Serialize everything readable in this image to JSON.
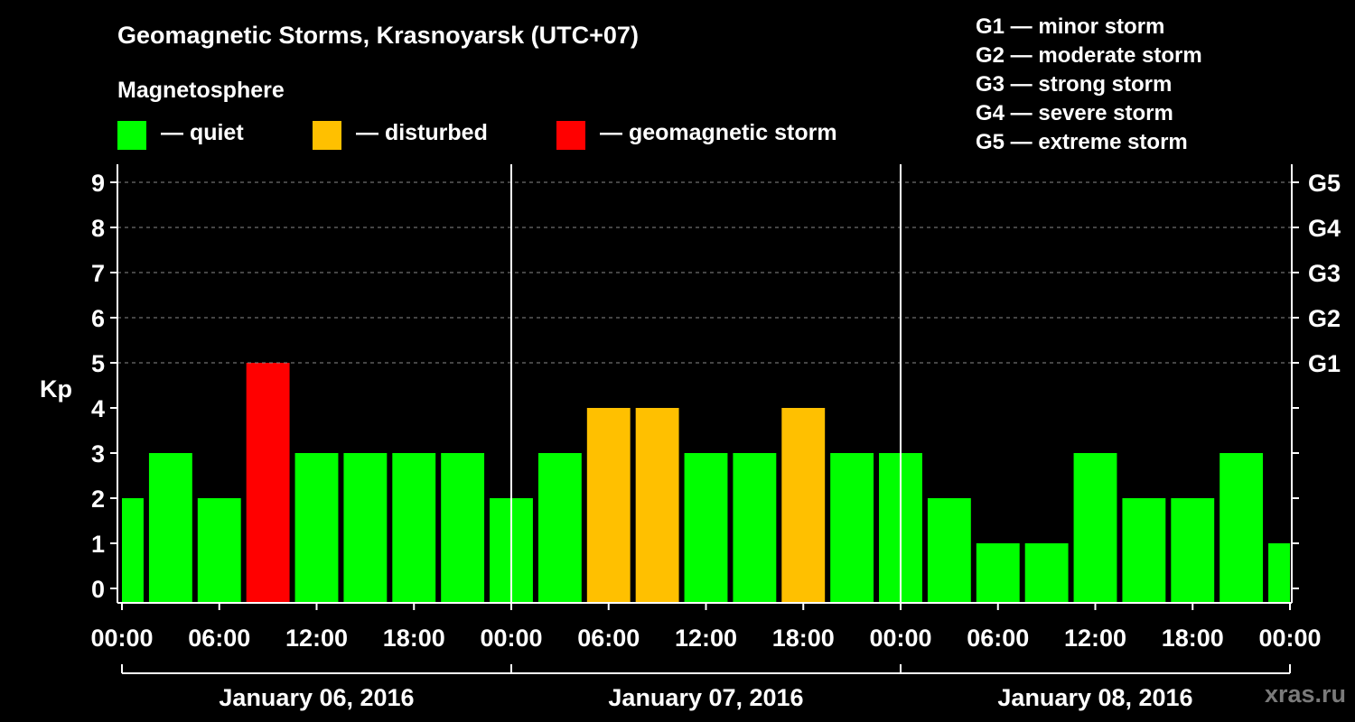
{
  "title": "Geomagnetic Storms, Krasnoyarsk (UTC+07)",
  "magnetosphere_label": "Magnetosphere",
  "legend": {
    "quiet": {
      "label": "— quiet",
      "color": "#00ff00"
    },
    "disturbed": {
      "label": "— disturbed",
      "color": "#ffc000"
    },
    "storm": {
      "label": "— geomagnetic storm",
      "color": "#ff0000"
    }
  },
  "storm_scale": [
    "G1 — minor storm",
    "G2 — moderate storm",
    "G3 — strong storm",
    "G4 — severe storm",
    "G5 — extreme storm"
  ],
  "watermark": "xras.ru",
  "chart_data": {
    "type": "bar",
    "ylabel": "Kp",
    "ylim": [
      0,
      9
    ],
    "yticks": [
      "0",
      "1",
      "2",
      "3",
      "4",
      "5",
      "6",
      "7",
      "8",
      "9"
    ],
    "right_ticks": [
      {
        "value": 5,
        "label": "G1"
      },
      {
        "value": 6,
        "label": "G2"
      },
      {
        "value": 7,
        "label": "G3"
      },
      {
        "value": 8,
        "label": "G4"
      },
      {
        "value": 9,
        "label": "G5"
      }
    ],
    "x_tick_labels": [
      "00:00",
      "06:00",
      "12:00",
      "18:00",
      "00:00",
      "06:00",
      "12:00",
      "18:00",
      "00:00",
      "06:00",
      "12:00",
      "18:00",
      "00:00"
    ],
    "days": [
      "January 06, 2016",
      "January 07, 2016",
      "January 08, 2016"
    ],
    "interval_hours": 3,
    "values": [
      2,
      3,
      2,
      5,
      3,
      3,
      3,
      3,
      2,
      3,
      4,
      4,
      3,
      3,
      4,
      3,
      3,
      2,
      1,
      1,
      3,
      2,
      2,
      3,
      1
    ],
    "colors": {
      "quiet": "#00ff00",
      "disturbed": "#ffc000",
      "storm": "#ff0000"
    }
  }
}
